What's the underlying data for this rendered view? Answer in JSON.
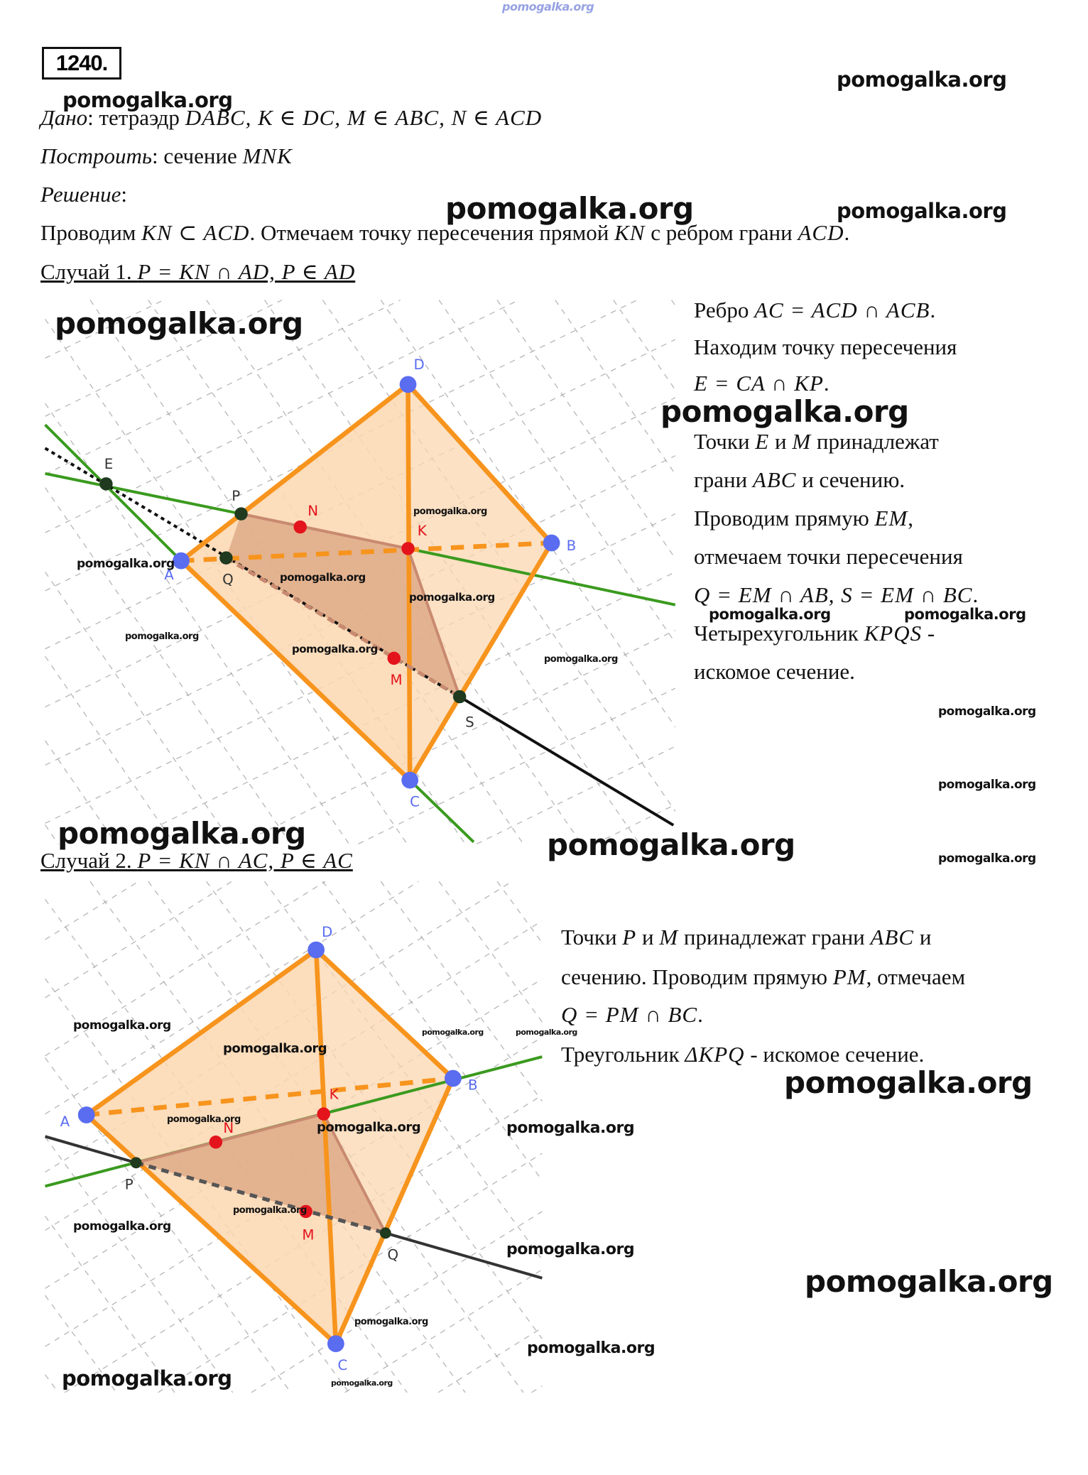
{
  "problem_number": "1240.",
  "header_watermark": "pomogalka.org",
  "intro": [
    [
      {
        "i": "Дано"
      },
      {
        "t": ": тетраэдр "
      },
      {
        "m": "DABC, K ∈ DC, M ∈ ABC, N ∈ ACD"
      }
    ],
    [
      {
        "i": "Построить"
      },
      {
        "t": ": сечение "
      },
      {
        "m": "MNK"
      }
    ],
    [
      {
        "i": "Решение"
      },
      {
        "t": ":"
      }
    ],
    [
      {
        "t": "Проводим "
      },
      {
        "m": "KN ⊂ ACD"
      },
      {
        "t": ". Отмечаем точку пересечения прямой "
      },
      {
        "m": "KN"
      },
      {
        "t": " с ребром грани "
      },
      {
        "m": "ACD"
      },
      {
        "t": "."
      }
    ]
  ],
  "case1": {
    "heading": [
      {
        "t": "Случай 1. "
      },
      {
        "m": "P = KN ∩ AD, P ∈ AD"
      }
    ],
    "text": [
      [
        {
          "t": "Ребро "
        },
        {
          "m": "AC = ACD ∩ ACB"
        },
        {
          "t": "."
        }
      ],
      [
        {
          "t": "Находим точку пересечения"
        }
      ],
      [
        {
          "m": "E = CA ∩ KP"
        },
        {
          "t": "."
        }
      ],
      [
        {
          "t": "Точки "
        },
        {
          "m": "E"
        },
        {
          "t": " и "
        },
        {
          "m": "M"
        },
        {
          "t": " принадлежат"
        }
      ],
      [
        {
          "t": "грани "
        },
        {
          "m": "ABC"
        },
        {
          "t": " и сечению."
        }
      ],
      [
        {
          "t": "Проводим прямую "
        },
        {
          "m": "EM"
        },
        {
          "t": ","
        }
      ],
      [
        {
          "t": "отмечаем точки пересечения"
        }
      ],
      [
        {
          "m": "Q = EM ∩ AB, S = EM ∩ BC"
        },
        {
          "t": "."
        }
      ],
      [
        {
          "t": "Четырехугольник "
        },
        {
          "m": "KPQS"
        },
        {
          "t": " -"
        }
      ],
      [
        {
          "t": "искомое сечение."
        }
      ]
    ],
    "diagram_labels": {
      "D": "D",
      "A": "A",
      "B": "B",
      "C": "C",
      "K": "K",
      "N": "N",
      "P": "P",
      "Q": "Q",
      "M": "M",
      "S": "S",
      "E": "E"
    }
  },
  "case2": {
    "heading": [
      {
        "t": "Случай 2. "
      },
      {
        "m": "P = KN ∩ AC, P ∈ AC"
      }
    ],
    "text": [
      [
        {
          "t": "Точки "
        },
        {
          "m": "P"
        },
        {
          "t": " и "
        },
        {
          "m": "M"
        },
        {
          "t": " принадлежат грани "
        },
        {
          "m": "ABC"
        },
        {
          "t": " и"
        }
      ],
      [
        {
          "t": "сечению. Проводим прямую "
        },
        {
          "m": "PM"
        },
        {
          "t": ", отмечаем"
        }
      ],
      [
        {
          "m": "Q = PM ∩ BC"
        },
        {
          "t": "."
        }
      ],
      [
        {
          "t": "Треугольник "
        },
        {
          "m": "ΔKPQ"
        },
        {
          "t": " - искомое сечение."
        }
      ]
    ],
    "diagram_labels": {
      "D": "D",
      "A": "A",
      "B": "B",
      "C": "C",
      "K": "K",
      "N": "N",
      "P": "P",
      "M": "M",
      "Q": "Q"
    }
  },
  "watermark": "pomogalka.org",
  "colors": {
    "edge": "#f7941d",
    "face": "#fbd7b0",
    "section": "#d9a07c",
    "green": "#3a9a1e",
    "line": "#111111",
    "vertex": "#5a6cf0",
    "point": "#e3141c",
    "intersection": "#1f3a1f"
  }
}
